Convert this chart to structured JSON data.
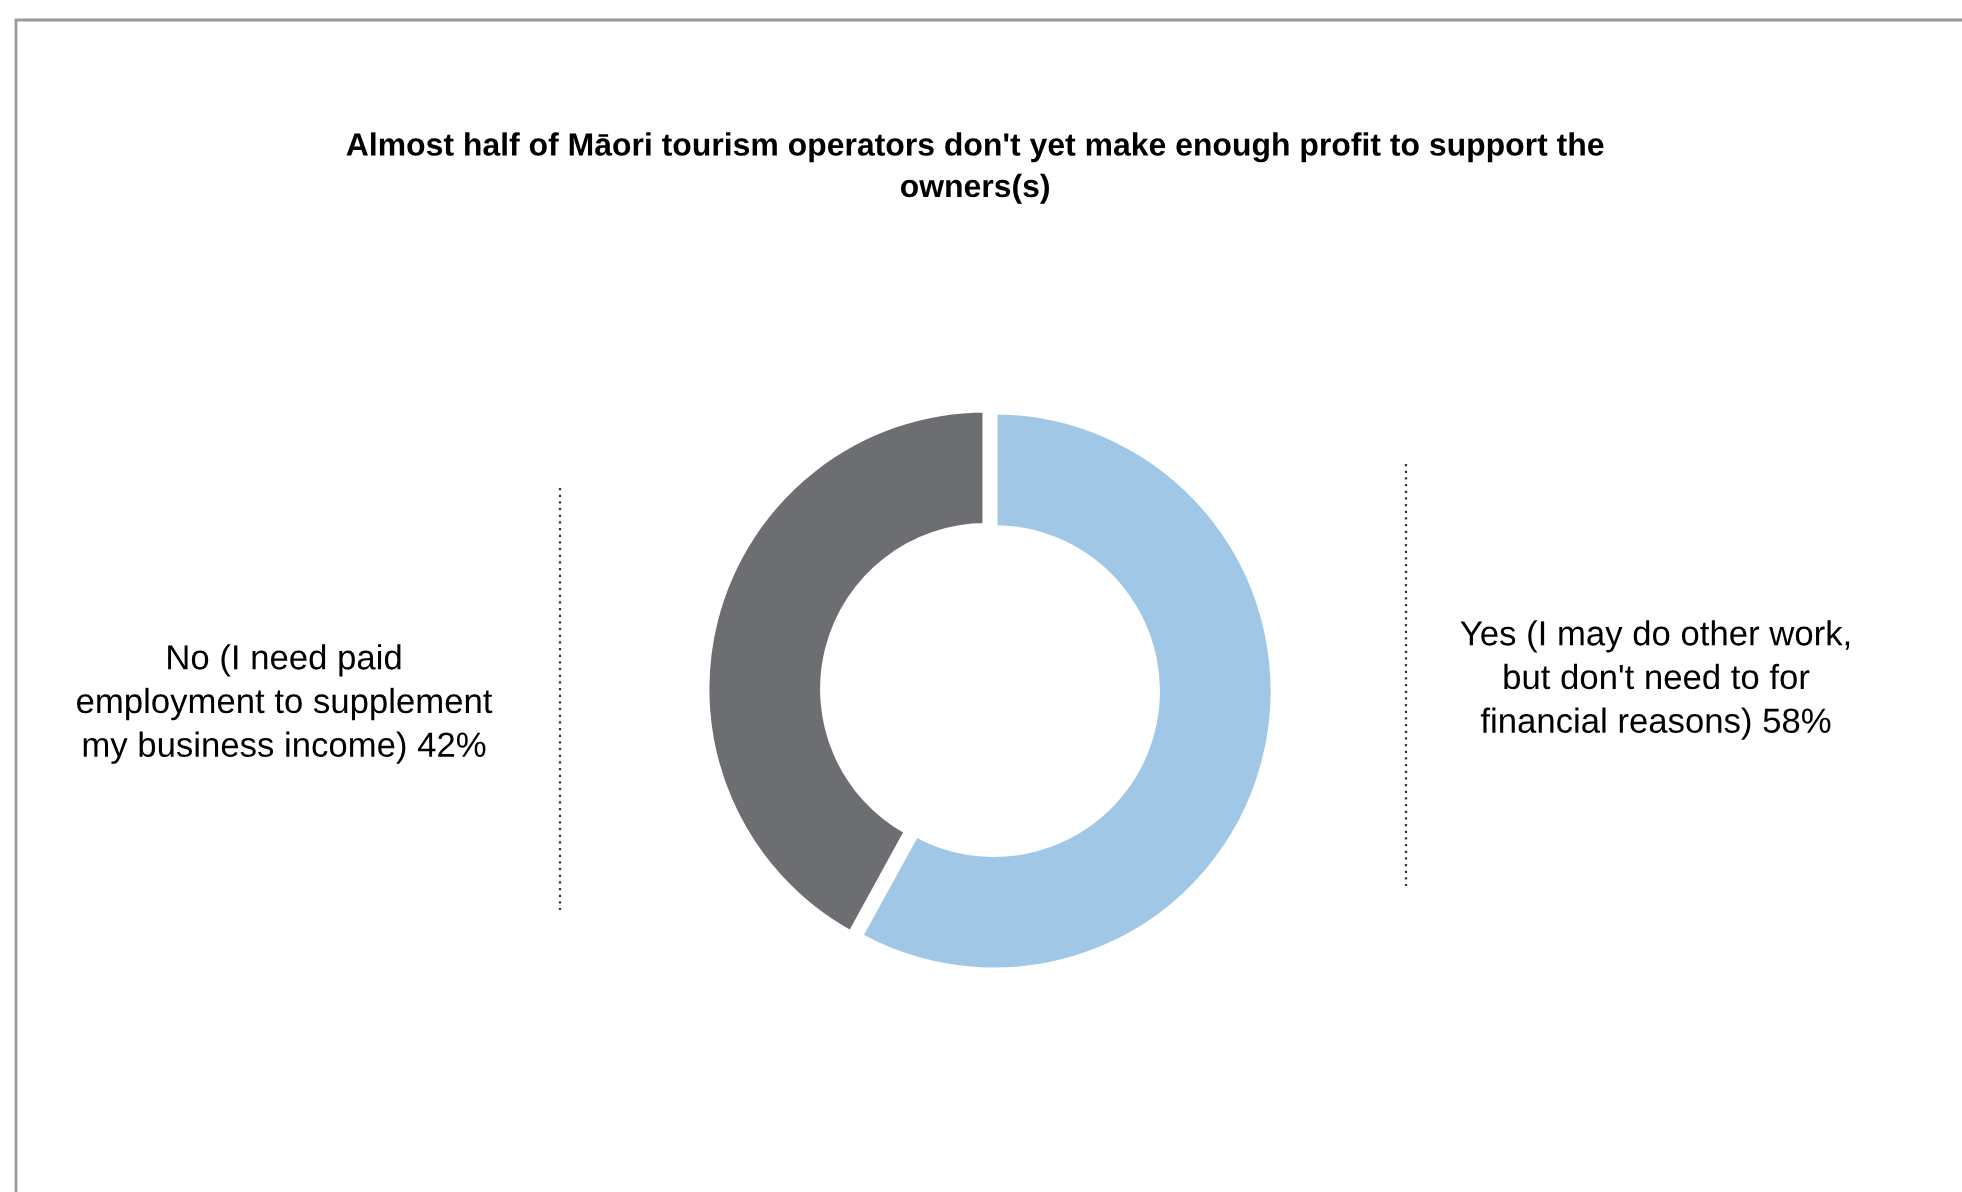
{
  "chart_data": {
    "type": "donut",
    "title": "Almost half of Māori tourism operators don't yet make enough profit to support the owners(s)",
    "categories": [
      "Yes (I may do other work, but don't need to for financial reasons)",
      "No (I need paid employment to supplement my business income)"
    ],
    "values": [
      58,
      42
    ],
    "value_labels": [
      "58%",
      "42%"
    ],
    "colors": [
      "#a0c8e6",
      "#6d6e71"
    ],
    "legend": false
  }
}
